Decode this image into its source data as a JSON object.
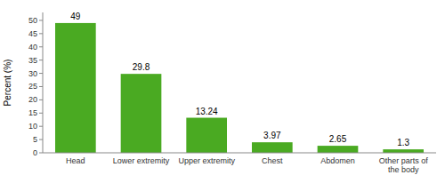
{
  "chart_data": {
    "type": "bar",
    "categories": [
      "Head",
      "Lower extremity",
      "Upper extremity",
      "Chest",
      "Abdomen",
      "Other parts of\nthe body"
    ],
    "values": [
      49,
      29.8,
      13.24,
      3.97,
      2.65,
      1.3
    ],
    "color": "#4aaa22",
    "ylabel": "Percent (%)",
    "ylim": [
      0,
      53
    ],
    "yticks": [
      0,
      5,
      10,
      15,
      20,
      25,
      30,
      35,
      40,
      45,
      50
    ],
    "data_labels": true,
    "grid": false
  }
}
